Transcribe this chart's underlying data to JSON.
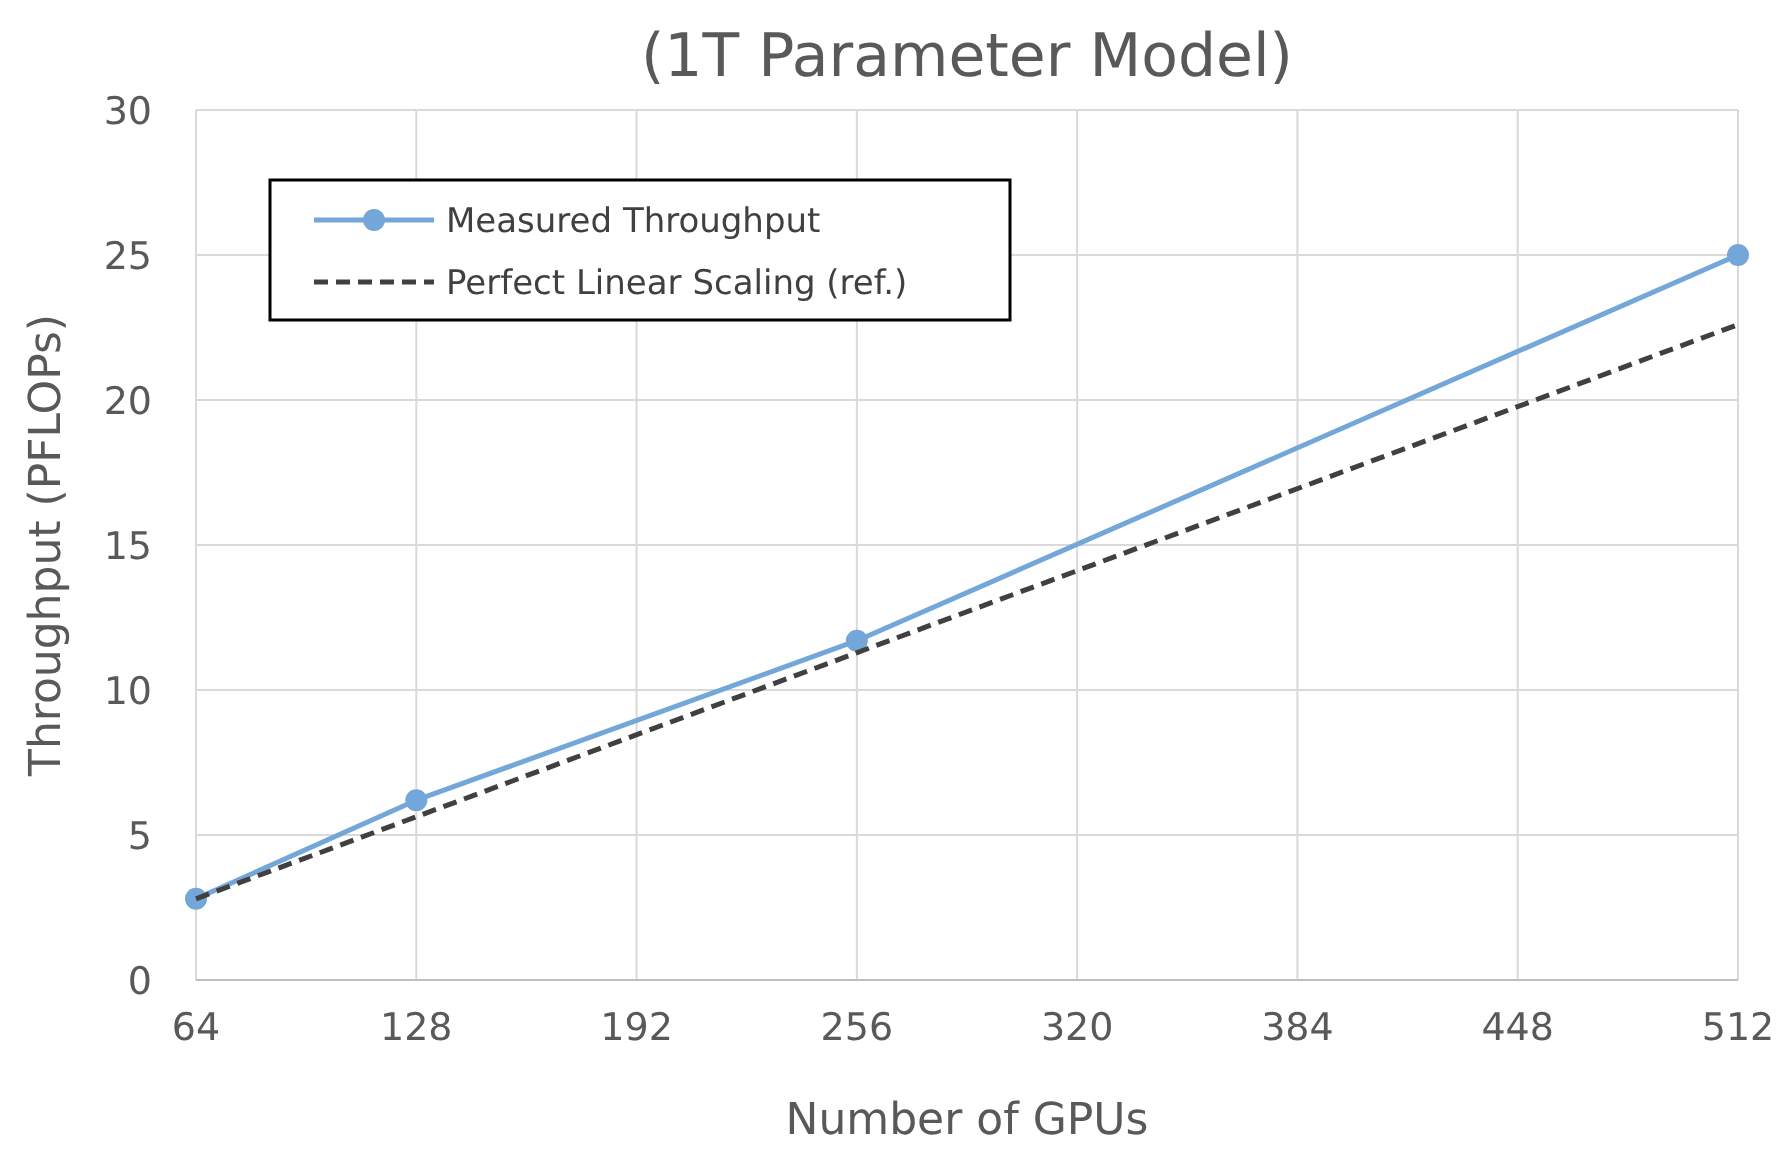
{
  "chart_data": {
    "type": "line",
    "title": "(1T Parameter Model)",
    "xlabel": "Number of GPUs",
    "ylabel": "Throughput (PFLOPs)",
    "x": [
      64,
      128,
      256,
      512
    ],
    "series": [
      {
        "name": "Measured Throughput",
        "color": "#74a7d9",
        "values": [
          2.8,
          6.2,
          11.7,
          25.0
        ],
        "marker": "circle",
        "line_style": "solid"
      },
      {
        "name": "Perfect Linear Scaling (ref.)",
        "color": "#404040",
        "x": [
          64,
          512
        ],
        "values": [
          2.8,
          22.6
        ],
        "marker": "none",
        "line_style": "dashed"
      }
    ],
    "xlim": [
      64,
      512
    ],
    "xticks": [
      64,
      128,
      192,
      256,
      320,
      384,
      448,
      512
    ],
    "ylim": [
      0,
      30
    ],
    "yticks": [
      0,
      5,
      10,
      15,
      20,
      25,
      30
    ],
    "grid": true,
    "legend": "top left"
  }
}
